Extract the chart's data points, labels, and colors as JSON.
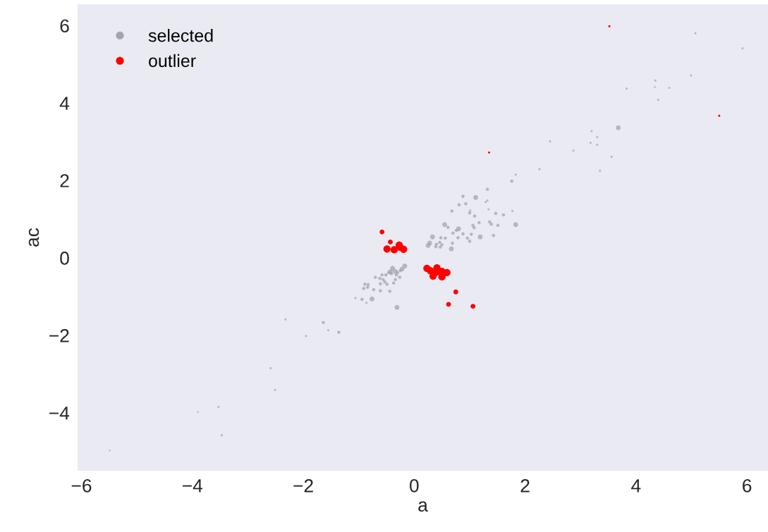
{
  "chart_data": {
    "type": "bubble",
    "xlabel": "a",
    "ylabel": "ac",
    "xlim": [
      -6.07,
      6.38
    ],
    "ylim": [
      -5.5,
      6.55
    ],
    "xticks": [
      -6,
      -4,
      -2,
      0,
      2,
      4,
      6
    ],
    "yticks": [
      -4,
      -2,
      0,
      2,
      4,
      6
    ],
    "grid": false,
    "legend": "top left",
    "marker": "circle",
    "series": [
      {
        "name": "selected",
        "color": "#a4a4ac",
        "x": [
          1.76,
          1.32,
          0.88,
          1.11,
          0.81,
          0.93,
          1.32,
          1.29,
          0.68,
          1.01,
          1.0,
          1.34,
          1.47,
          1.61,
          1.77,
          1.09,
          1.17,
          1.36,
          1.39,
          1.51,
          1.83,
          0.55,
          0.61,
          1.06,
          1.08,
          0.8,
          0.76,
          0.7,
          0.88,
          1.03,
          0.96,
          1.19,
          1.43,
          0.79,
          1.0,
          0.33,
          0.48,
          0.56,
          0.28,
          0.25,
          0.4,
          0.46,
          0.5,
          0.47,
          0.39,
          0.69,
          0.67,
          -0.17,
          -0.22,
          -0.25,
          -0.39,
          -0.43,
          -0.34,
          -0.3,
          -0.46,
          -0.41,
          -0.51,
          -0.26,
          -0.32,
          -0.58,
          -0.7,
          -0.62,
          -0.56,
          -0.53,
          -0.34,
          -0.49,
          -0.61,
          -0.37,
          -0.89,
          -0.83,
          -0.91,
          -0.84,
          -0.73,
          -0.61,
          -0.44,
          -1.06,
          -0.94,
          -0.86,
          -0.76,
          -0.31,
          5.07,
          5.92,
          4.99,
          4.35,
          4.34,
          4.6,
          3.83,
          4.4,
          3.68,
          3.2,
          3.3,
          3.18,
          3.3,
          2.45,
          2.87,
          3.56,
          3.35,
          2.26,
          1.83,
          -2.32,
          -1.64,
          -1.55,
          -1.36,
          -1.95,
          -2.59,
          -2.51,
          -3.53,
          -3.9,
          -3.47,
          -5.49
        ],
        "values": [
          1.98,
          1.77,
          1.59,
          1.56,
          1.37,
          1.4,
          1.48,
          1.44,
          1.21,
          1.22,
          1.16,
          1.25,
          1.15,
          1.11,
          1.21,
          1.08,
          0.91,
          0.93,
          0.87,
          0.84,
          0.86,
          0.86,
          0.79,
          0.84,
          0.78,
          0.75,
          0.71,
          0.64,
          0.62,
          0.61,
          0.51,
          0.54,
          0.58,
          0.52,
          0.43,
          0.54,
          0.52,
          0.51,
          0.38,
          0.32,
          0.35,
          0.4,
          0.34,
          0.28,
          0.29,
          0.38,
          0.23,
          -0.21,
          -0.29,
          -0.33,
          -0.27,
          -0.36,
          -0.35,
          -0.38,
          -0.38,
          -0.41,
          -0.44,
          -0.5,
          -0.44,
          -0.44,
          -0.5,
          -0.53,
          -0.56,
          -0.62,
          -0.56,
          -0.68,
          -0.67,
          -0.65,
          -0.68,
          -0.69,
          -0.79,
          -0.76,
          -0.82,
          -0.85,
          -0.86,
          -1.04,
          -1.07,
          -1.16,
          -1.06,
          -1.28,
          5.8,
          5.41,
          4.71,
          4.58,
          4.41,
          4.39,
          4.37,
          4.08,
          3.36,
          3.27,
          3.12,
          2.97,
          2.92,
          3.01,
          2.77,
          2.61,
          2.25,
          2.29,
          2.15,
          -1.59,
          -1.67,
          -1.87,
          -1.92,
          -2.02,
          -2.85,
          -3.41,
          -3.85,
          -3.98,
          -4.58,
          -4.98
        ],
        "sizes": [
          0.2,
          0.2,
          0.2,
          0.45,
          0.2,
          0.2,
          0.09,
          0.09,
          0.2,
          0.09,
          0.2,
          0.09,
          0.2,
          0.2,
          0.09,
          0.2,
          0.2,
          0.2,
          0.2,
          0.2,
          0.45,
          0.45,
          0.2,
          0.2,
          0.2,
          0.45,
          0.2,
          0.2,
          0.2,
          0.2,
          0.2,
          0.45,
          0.2,
          0.2,
          0.2,
          0.45,
          0.2,
          0.2,
          0.45,
          0.45,
          0.2,
          0.2,
          0.2,
          0.2,
          0.2,
          0.2,
          0.45,
          0.45,
          0.45,
          0.2,
          0.45,
          0.45,
          0.45,
          0.2,
          0.2,
          0.2,
          0.2,
          0.2,
          0.2,
          0.2,
          0.2,
          0.2,
          0.2,
          0.2,
          0.2,
          0.2,
          0.2,
          0.2,
          0.2,
          0.2,
          0.2,
          0.2,
          0.2,
          0.2,
          0.2,
          0.09,
          0.2,
          0.09,
          0.45,
          0.45,
          0.09,
          0.09,
          0.09,
          0.09,
          0.06,
          0.09,
          0.09,
          0.09,
          0.45,
          0.09,
          0.09,
          0.09,
          0.09,
          0.09,
          0.09,
          0.09,
          0.09,
          0.09,
          0.09,
          0.09,
          0.2,
          0.09,
          0.2,
          0.09,
          0.09,
          0.09,
          0.09,
          0.06,
          0.09,
          0.06
        ]
      },
      {
        "name": "outlier",
        "color": "#ff0000",
        "x": [
          -0.58,
          -0.43,
          -0.49,
          -0.36,
          -0.27,
          -0.25,
          -0.19,
          0.23,
          0.29,
          0.34,
          0.41,
          0.44,
          0.5,
          0.5,
          0.59,
          0.38,
          0.75,
          0.62,
          1.06,
          3.52,
          5.5,
          1.35
        ],
        "values": [
          0.67,
          0.41,
          0.23,
          0.21,
          0.33,
          0.27,
          0.22,
          -0.27,
          -0.33,
          -0.47,
          -0.26,
          -0.35,
          -0.35,
          -0.49,
          -0.38,
          -0.38,
          -0.88,
          -1.2,
          -1.25,
          5.98,
          3.67,
          2.72
        ],
        "sizes": [
          0.45,
          0.45,
          1,
          1,
          1,
          1,
          1,
          1,
          1,
          1,
          1,
          1,
          1,
          1,
          1,
          1,
          0.45,
          0.45,
          0.45,
          0.09,
          0.09,
          0.09
        ]
      }
    ]
  }
}
